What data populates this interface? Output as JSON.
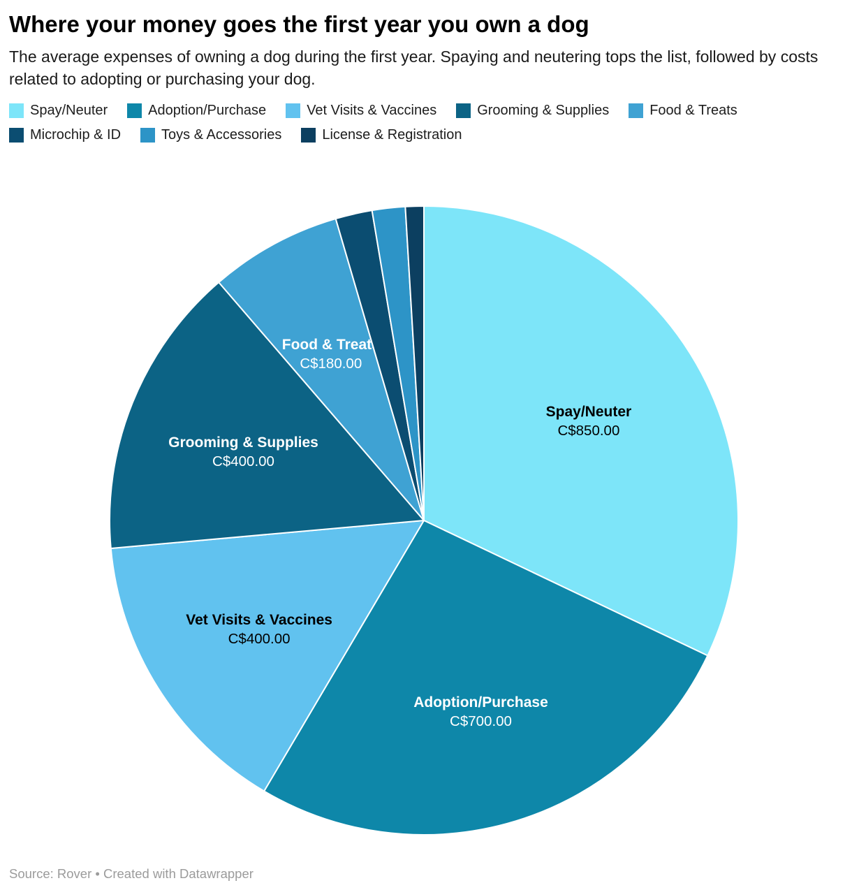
{
  "header": {
    "title": "Where your money goes the first year you own a dog",
    "subtitle": "The average expenses of owning a dog during the first year. Spaying and neutering tops the list, followed by costs related to adopting or purchasing your dog."
  },
  "footer": {
    "text": "Source: Rover • Created with Datawrapper"
  },
  "chart_data": {
    "type": "pie",
    "title": "Where your money goes the first year you own a dog",
    "currency": "C$",
    "direction": "clockwise",
    "start_angle_deg": 0,
    "legend_position": "top",
    "slices": [
      {
        "label": "Spay/Neuter",
        "value": 850,
        "value_label": "C$850.00",
        "color": "#7de5f9",
        "show_label": true,
        "label_color": "#000000"
      },
      {
        "label": "Adoption/Purchase",
        "value": 700,
        "value_label": "C$700.00",
        "color": "#0e87a9",
        "show_label": true,
        "label_color": "#ffffff"
      },
      {
        "label": "Vet Visits & Vaccines",
        "value": 400,
        "value_label": "C$400.00",
        "color": "#61c2ef",
        "show_label": true,
        "label_color": "#000000"
      },
      {
        "label": "Grooming & Supplies",
        "value": 400,
        "value_label": "C$400.00",
        "color": "#0c6385",
        "show_label": true,
        "label_color": "#ffffff"
      },
      {
        "label": "Food & Treats",
        "value": 180,
        "value_label": "C$180.00",
        "color": "#3fa2d3",
        "show_label": true,
        "label_color": "#ffffff"
      },
      {
        "label": "Microchip & ID",
        "value": 50,
        "estimated": true,
        "color": "#0b4d71",
        "show_label": false,
        "label_color": "#ffffff"
      },
      {
        "label": "Toys & Accessories",
        "value": 45,
        "estimated": true,
        "color": "#2d94c7",
        "show_label": false,
        "label_color": "#ffffff"
      },
      {
        "label": "License & Registration",
        "value": 25,
        "estimated": true,
        "color": "#0c3f60",
        "show_label": false,
        "label_color": "#ffffff"
      }
    ]
  }
}
